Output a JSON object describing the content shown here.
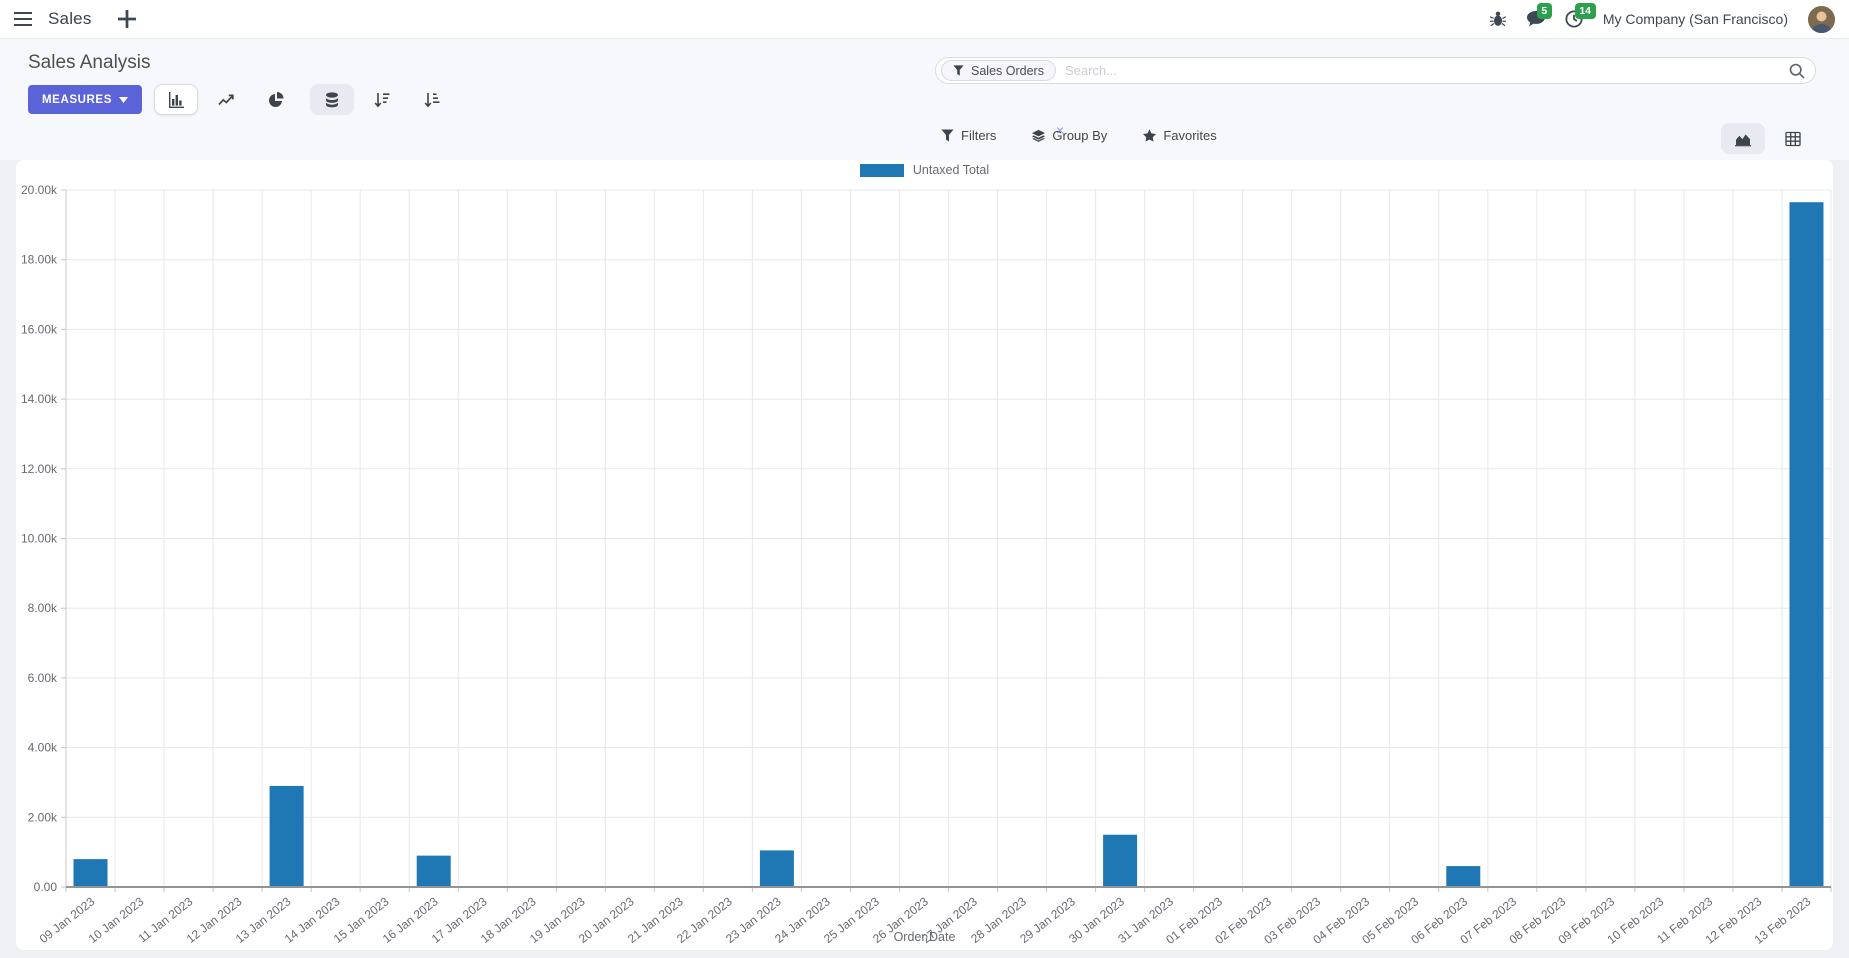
{
  "navbar": {
    "app_label": "Sales",
    "chat_badge": "5",
    "activity_badge": "14",
    "company": "My Company (San Francisco)"
  },
  "control_panel": {
    "title": "Sales Analysis",
    "measures_label": "MEASURES",
    "facet_label": "Sales Orders",
    "facet_remove_glyph": "×",
    "search_placeholder": "Search...",
    "filters_label": "Filters",
    "group_by_label": "Group By",
    "favorites_label": "Favorites"
  },
  "chart_data": {
    "type": "bar",
    "title": "",
    "xlabel": "Order Date",
    "ylabel": "",
    "legend": "Untaxed Total",
    "bar_color": "#1f77b4",
    "grid": true,
    "legend_position": "top",
    "ylim": [
      0,
      20000
    ],
    "ytick_step": 2000,
    "ytick_labels": [
      "0.00",
      "2.00k",
      "4.00k",
      "6.00k",
      "8.00k",
      "10.00k",
      "12.00k",
      "14.00k",
      "16.00k",
      "18.00k",
      "20.00k"
    ],
    "categories": [
      "09 Jan 2023",
      "10 Jan 2023",
      "11 Jan 2023",
      "12 Jan 2023",
      "13 Jan 2023",
      "14 Jan 2023",
      "15 Jan 2023",
      "16 Jan 2023",
      "17 Jan 2023",
      "18 Jan 2023",
      "19 Jan 2023",
      "20 Jan 2023",
      "21 Jan 2023",
      "22 Jan 2023",
      "23 Jan 2023",
      "24 Jan 2023",
      "25 Jan 2023",
      "26 Jan 2023",
      "27 Jan 2023",
      "28 Jan 2023",
      "29 Jan 2023",
      "30 Jan 2023",
      "31 Jan 2023",
      "01 Feb 2023",
      "02 Feb 2023",
      "03 Feb 2023",
      "04 Feb 2023",
      "05 Feb 2023",
      "06 Feb 2023",
      "07 Feb 2023",
      "08 Feb 2023",
      "09 Feb 2023",
      "10 Feb 2023",
      "11 Feb 2023",
      "12 Feb 2023",
      "13 Feb 2023"
    ],
    "values": [
      800,
      0,
      0,
      0,
      2900,
      0,
      0,
      900,
      0,
      0,
      0,
      0,
      0,
      0,
      1050,
      0,
      0,
      0,
      0,
      0,
      0,
      1500,
      0,
      0,
      0,
      0,
      0,
      0,
      600,
      0,
      0,
      0,
      0,
      0,
      0,
      19650
    ]
  }
}
